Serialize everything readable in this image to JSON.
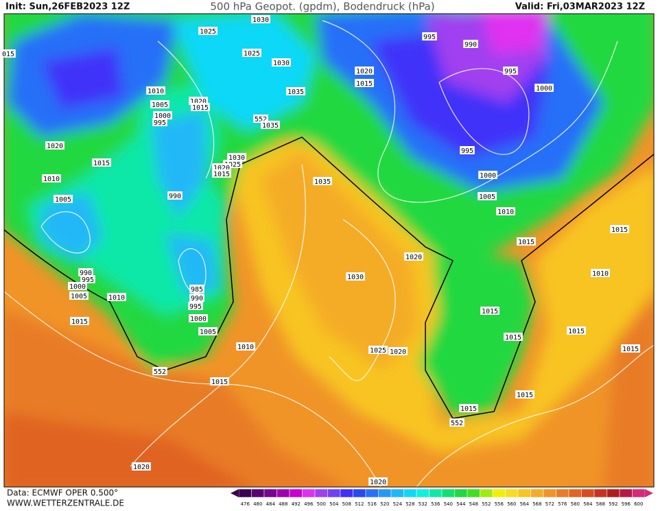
{
  "header": {
    "init": "Init: Sun,26FEB2023 12Z",
    "title": "500 hPa Geopot. (gpdm), Bodendruck (hPa)",
    "valid": "Valid: Fri,03MAR2023 12Z"
  },
  "map_labels": [
    "1030",
    "1025",
    "995",
    "990",
    "1025",
    "1030",
    "1020",
    "1015",
    "995",
    "1000",
    "1035",
    "1010",
    "1020",
    "1015",
    "1005",
    "1000",
    "995",
    "552",
    "1035",
    "995",
    "1020",
    "1015",
    "1030",
    "1025",
    "1020",
    "1015",
    "1010",
    "1035",
    "1000",
    "990",
    "1005",
    "1005",
    "1010",
    "1015",
    "1015",
    "1020",
    "1010",
    "990",
    "995",
    "1030",
    "1000",
    "1005",
    "1010",
    "985",
    "990",
    "995",
    "1000",
    "1015",
    "1015",
    "1015",
    "1005",
    "1015",
    "1010",
    "1025",
    "1020",
    "1015",
    "552",
    "1015",
    "1015",
    "1015",
    "552",
    "1020",
    "1020",
    "015"
  ],
  "color_scale": {
    "labels": [
      476,
      480,
      484,
      488,
      492,
      496,
      500,
      504,
      508,
      512,
      516,
      520,
      524,
      528,
      532,
      536,
      540,
      544,
      548,
      552,
      556,
      560,
      564,
      568,
      572,
      576,
      580,
      584,
      588,
      592,
      596,
      600
    ],
    "colors": [
      "#3c0050",
      "#5a0070",
      "#7a0090",
      "#a000b0",
      "#c800d0",
      "#e030f0",
      "#a040f0",
      "#7040f8",
      "#4030f8",
      "#2848f0",
      "#2870f8",
      "#2898f8",
      "#20b8f8",
      "#10d8f8",
      "#10f0e0",
      "#10e8a8",
      "#10e070",
      "#20d840",
      "#40e020",
      "#a0ec10",
      "#f0f000",
      "#f8dc20",
      "#f8c420",
      "#f4ac28",
      "#f09428",
      "#e87c28",
      "#e06424",
      "#d84c20",
      "#c83020",
      "#b01c1c",
      "#b81848",
      "#d82878"
    ]
  },
  "footer": {
    "source": "Data: ECMWF OPER 0.500°",
    "website": "WWW.WETTERZENTRALE.DE"
  }
}
